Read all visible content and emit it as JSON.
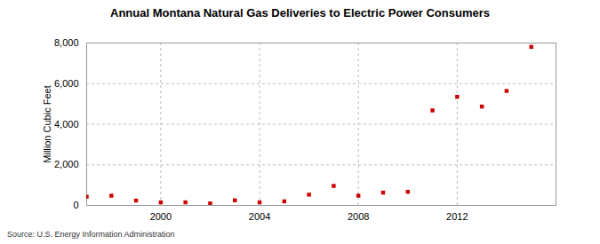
{
  "chart_data": {
    "type": "scatter",
    "title": "Annual Montana Natural Gas Deliveries to Electric Power Consumers",
    "caption": "Source: U.S. Energy Information Administration",
    "y_label": "Million Cubic Feet",
    "x": [
      1997,
      1998,
      1999,
      2000,
      2001,
      2002,
      2003,
      2004,
      2005,
      2006,
      2007,
      2008,
      2009,
      2010,
      2011,
      2012,
      2013,
      2014,
      2015
    ],
    "values": [
      430,
      480,
      240,
      150,
      150,
      100,
      250,
      150,
      200,
      530,
      960,
      480,
      630,
      670,
      4680,
      5350,
      4870,
      5640,
      7810
    ],
    "color": "#cc0000",
    "marker": "square",
    "xlim": [
      1997,
      2016
    ],
    "xticks": [
      2000,
      2004,
      2008,
      2012
    ],
    "ylim": [
      0,
      8000
    ],
    "yticks": [
      0,
      {
        "value": 2000,
        "label": "2,000"
      },
      {
        "value": 4000,
        "label": "4,000"
      },
      {
        "value": 6000,
        "label": "6,000"
      },
      {
        "value": 8000,
        "label": "8,000"
      }
    ],
    "grid": true
  }
}
